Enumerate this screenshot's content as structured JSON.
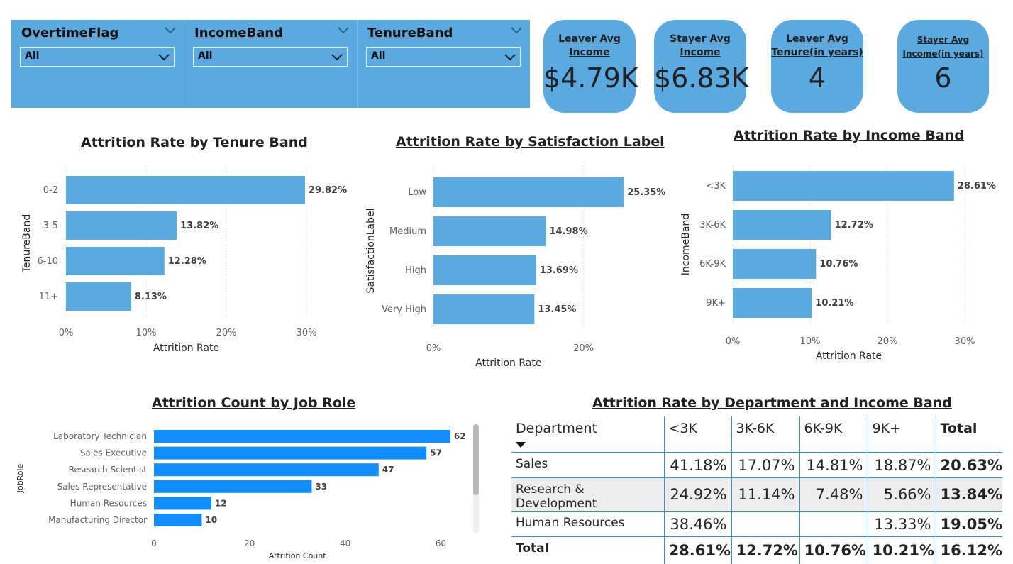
{
  "slicers": [
    {
      "title": "OvertimeFlag",
      "value": "All"
    },
    {
      "title": "IncomeBand",
      "value": "All"
    },
    {
      "title": "TenureBand",
      "value": "All"
    }
  ],
  "cards": [
    {
      "label_lines": [
        "Leaver Avg ",
        "Income"
      ],
      "value": "$4.79K"
    },
    {
      "label_lines": [
        "Stayer Avg ",
        "Income"
      ],
      "value": "$6.83K"
    },
    {
      "label_lines": [
        "Leaver Avg ",
        "Tenure(in years)"
      ],
      "value": "4"
    },
    {
      "label_lines": [
        "Stayer Avg ",
        "Income(in years)"
      ],
      "value": "6"
    }
  ],
  "colors": {
    "bar": "#5aa9e0",
    "bar_job": "#118dff",
    "accent": "#2a9ad6"
  },
  "chart_data": [
    {
      "type": "bar",
      "orientation": "horizontal",
      "title": "Attrition Rate by Tenure Band",
      "xlabel": "Attrition Rate",
      "ylabel": "TenureBand",
      "categories": [
        "0-2",
        "3-5",
        "6-10",
        "11+"
      ],
      "values": [
        29.82,
        13.82,
        12.28,
        8.13
      ],
      "data_labels": [
        "29.82%",
        "13.82%",
        "12.28%",
        "8.13%"
      ],
      "xlim": [
        0,
        30
      ],
      "ticks": [
        0,
        10,
        20,
        30
      ],
      "tick_labels": [
        "0%",
        "10%",
        "20%",
        "30%"
      ],
      "grid": true
    },
    {
      "type": "bar",
      "orientation": "horizontal",
      "title": "Attrition Rate by Satisfaction Label",
      "xlabel": "Attrition Rate",
      "ylabel": "SatisfactionLabel",
      "categories": [
        "Low",
        "Medium",
        "High",
        "Very High"
      ],
      "values": [
        25.35,
        14.98,
        13.69,
        13.45
      ],
      "data_labels": [
        "25.35%",
        "14.98%",
        "13.69%",
        "13.45%"
      ],
      "xlim": [
        0,
        20
      ],
      "ticks": [
        0,
        20
      ],
      "tick_labels": [
        "0%",
        "20%"
      ],
      "grid": true
    },
    {
      "type": "bar",
      "orientation": "horizontal",
      "title": "Attrition Rate by Income Band",
      "xlabel": "Attrition Rate",
      "ylabel": "IncomeBand",
      "categories": [
        "<3K",
        "3K-6K",
        "6K-9K",
        "9K+"
      ],
      "values": [
        28.61,
        12.72,
        10.76,
        10.21
      ],
      "data_labels": [
        "28.61%",
        "12.72%",
        "10.76%",
        "10.21%"
      ],
      "xlim": [
        0,
        30
      ],
      "ticks": [
        0,
        10,
        20,
        30
      ],
      "tick_labels": [
        "0%",
        "10%",
        "20%",
        "30%"
      ],
      "grid": true
    },
    {
      "type": "bar",
      "orientation": "horizontal",
      "title": "Attrition Count by Job Role",
      "xlabel": "Attrition Count",
      "ylabel": "JobRole",
      "categories": [
        "Laboratory Technician",
        "Sales Executive",
        "Research Scientist",
        "Sales Representative",
        "Human Resources",
        "Manufacturing Director"
      ],
      "values": [
        62,
        57,
        47,
        33,
        12,
        10
      ],
      "data_labels": [
        "62",
        "57",
        "47",
        "33",
        "12",
        "10"
      ],
      "xlim": [
        0,
        60
      ],
      "ticks": [
        0,
        20,
        40,
        60
      ],
      "tick_labels": [
        "0",
        "20",
        "40",
        "60"
      ],
      "grid": false
    },
    {
      "type": "table",
      "title": "Attrition Rate by Department and Income Band",
      "columns": [
        "Department",
        "<3K",
        "3K-6K",
        "6K-9K",
        "9K+",
        "Total"
      ],
      "rows": [
        [
          "Sales",
          "41.18%",
          "17.07%",
          "14.81%",
          "18.87%",
          "20.63%"
        ],
        [
          "Research & Development",
          "24.92%",
          "11.14%",
          "7.48%",
          "5.66%",
          "13.84%"
        ],
        [
          "Human Resources",
          "38.46%",
          "",
          "",
          "13.33%",
          "19.05%"
        ],
        [
          "Total",
          "28.61%",
          "12.72%",
          "10.76%",
          "10.21%",
          "16.12%"
        ]
      ]
    }
  ]
}
